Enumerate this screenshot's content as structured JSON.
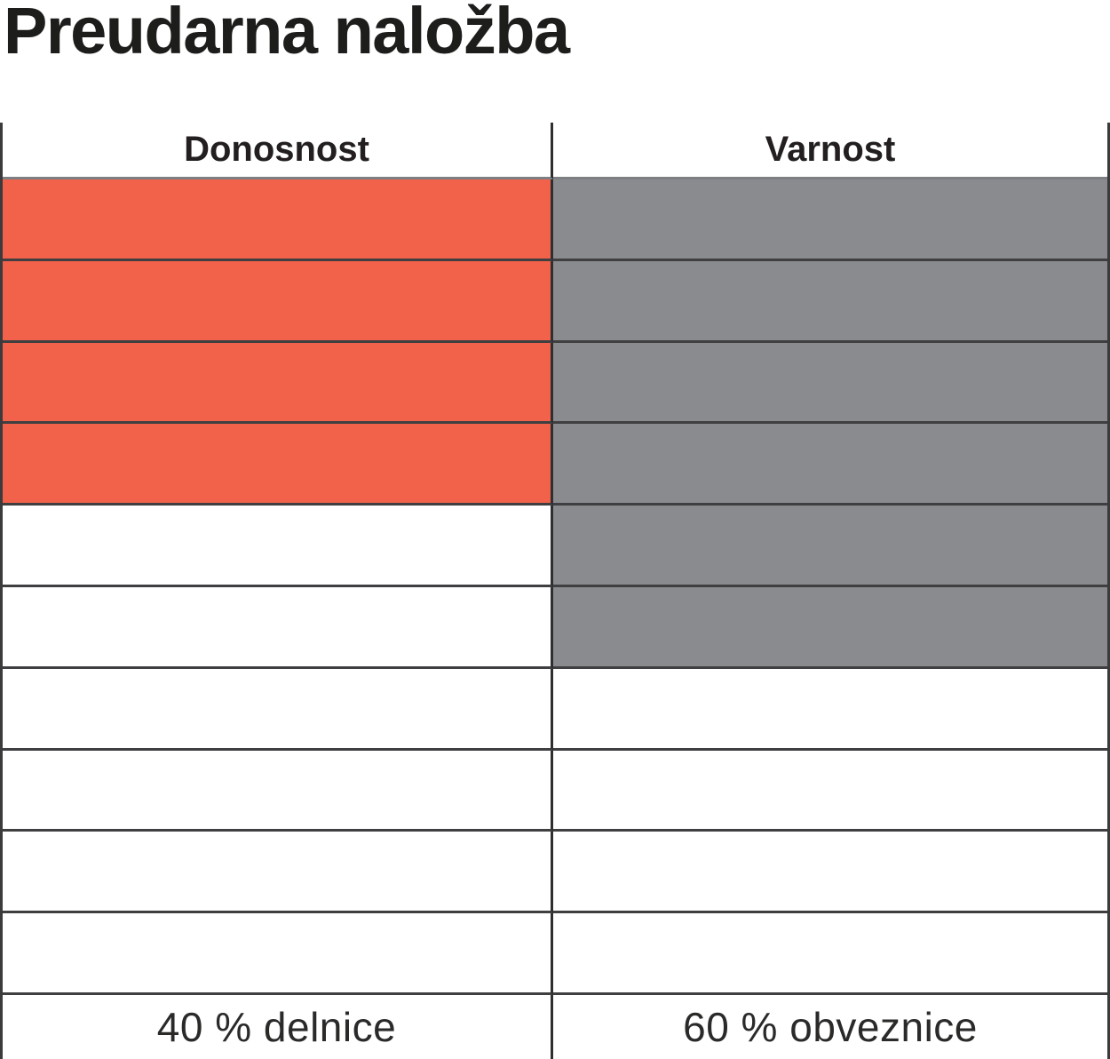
{
  "title": "Preudarna naložba",
  "chart_data": {
    "type": "table",
    "title": "Preudarna naložba",
    "description_semantics": "risk-return profile grid: filled cells out of 10 per attribute",
    "total_cells_per_column": 10,
    "columns": [
      {
        "header": "Donosnost",
        "filled_cells": 4,
        "fill_color": "#f2614a",
        "footer": "40 % delnice"
      },
      {
        "header": "Varnost",
        "filled_cells": 6,
        "fill_color": "#898b8e",
        "footer": "60 % obveznice"
      }
    ]
  }
}
